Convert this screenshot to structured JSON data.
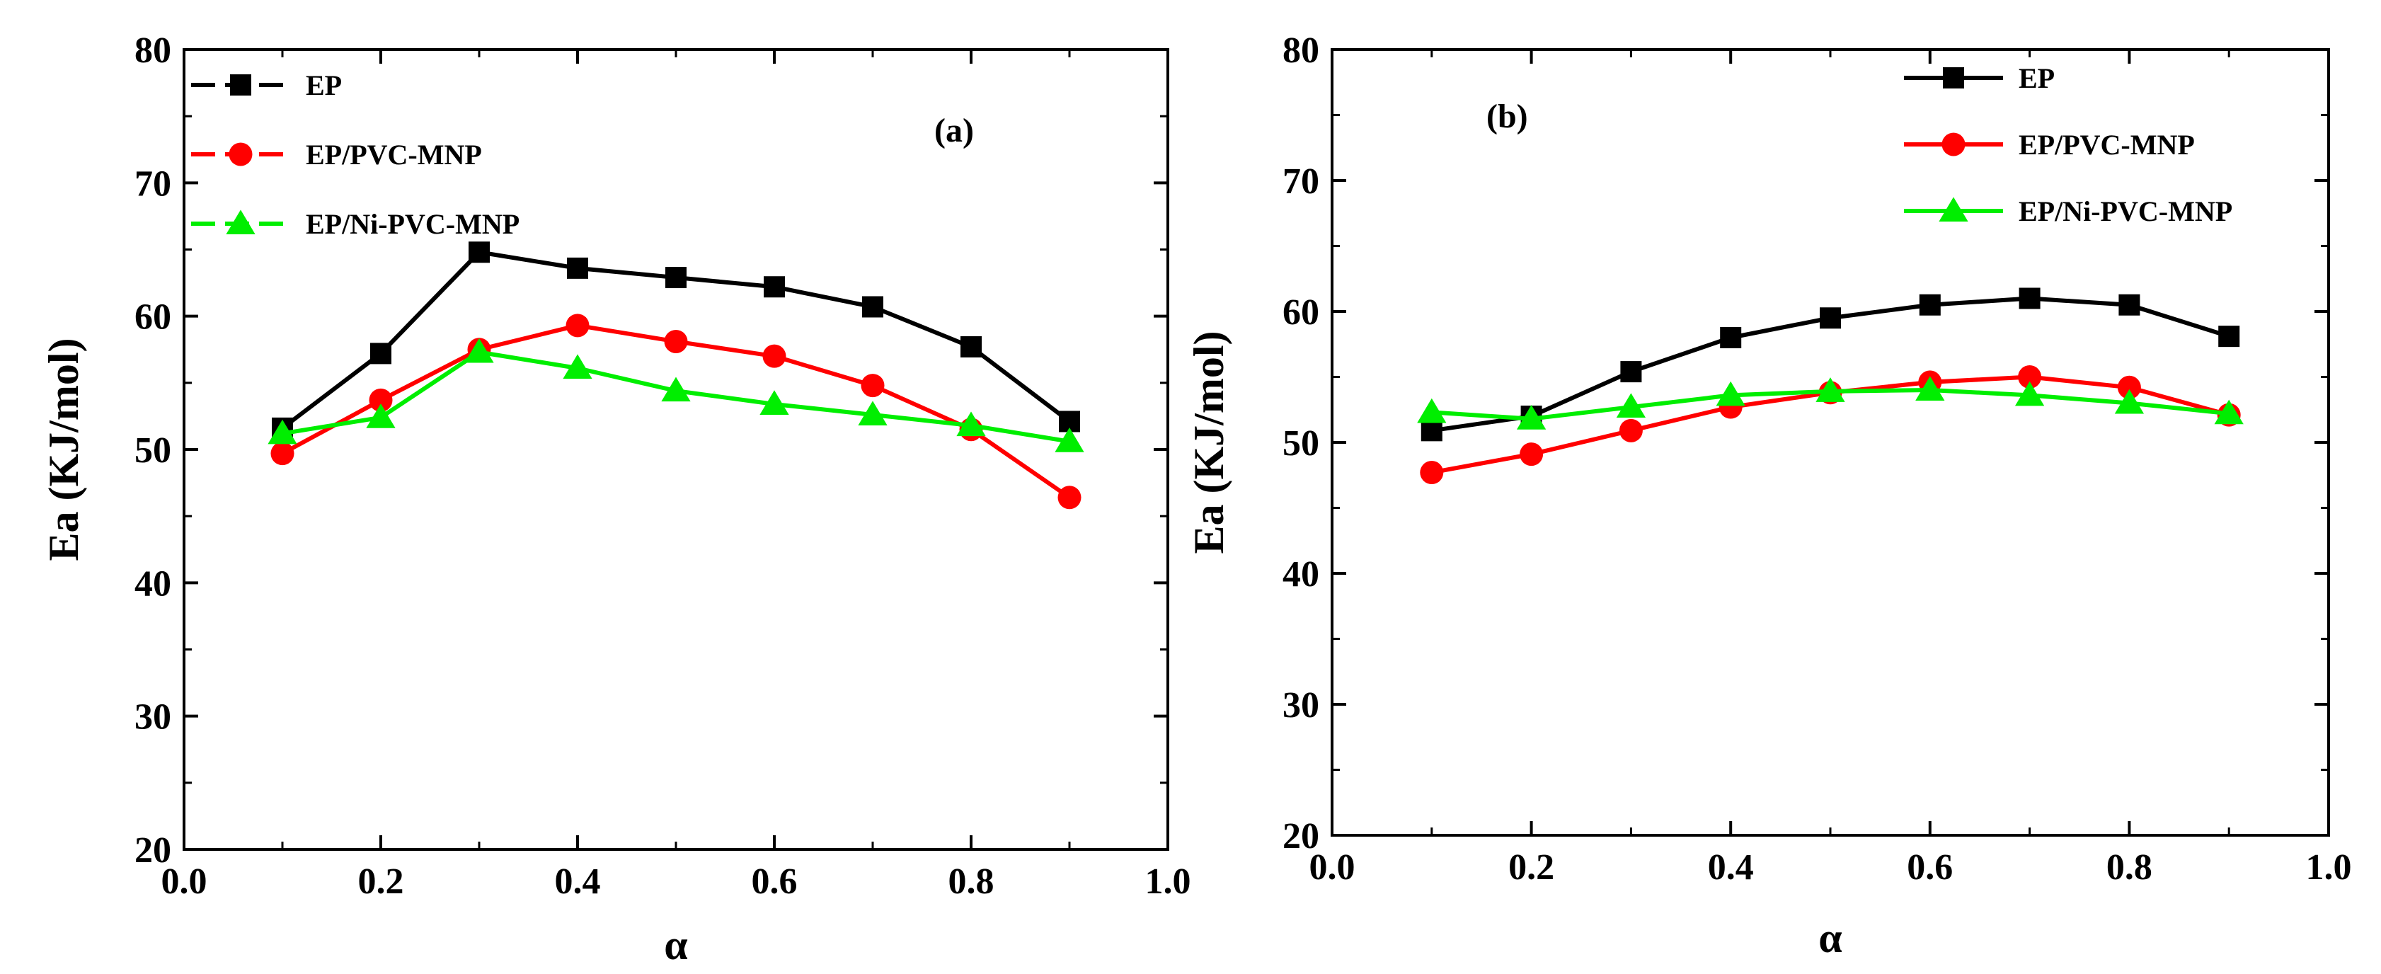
{
  "chart_data": [
    {
      "type": "line",
      "panel_label": "(a)",
      "xlabel": "α",
      "ylabel": "Ea (KJ/mol)",
      "xlim": [
        0.0,
        1.0
      ],
      "ylim": [
        20,
        80
      ],
      "x_ticks": [
        0.0,
        0.2,
        0.4,
        0.6,
        0.8,
        1.0
      ],
      "x_tick_labels": [
        "0.0",
        "0.2",
        "0.4",
        "0.6",
        "0.8",
        "1.0"
      ],
      "y_ticks": [
        20,
        30,
        40,
        50,
        60,
        70,
        80
      ],
      "y_tick_labels": [
        "20",
        "30",
        "40",
        "50",
        "60",
        "70",
        "80"
      ],
      "legend_position": "top-left",
      "x": [
        0.1,
        0.2,
        0.3,
        0.4,
        0.5,
        0.6,
        0.7,
        0.8,
        0.9
      ],
      "series": [
        {
          "name": "EP",
          "color": "#000000",
          "marker": "square",
          "values": [
            51.6,
            57.2,
            64.8,
            63.6,
            62.9,
            62.2,
            60.7,
            57.7,
            52.1
          ]
        },
        {
          "name": "EP/PVC-MNP",
          "color": "#ff0000",
          "marker": "circle",
          "values": [
            49.7,
            53.7,
            57.5,
            59.3,
            58.1,
            57.0,
            54.8,
            51.5,
            46.4
          ]
        },
        {
          "name": "EP/Ni-PVC-MNP",
          "color": "#00ee00",
          "marker": "triangle",
          "values": [
            51.2,
            52.4,
            57.3,
            56.1,
            54.4,
            53.4,
            52.6,
            51.8,
            50.6
          ]
        }
      ]
    },
    {
      "type": "line",
      "panel_label": "(b)",
      "xlabel": "α",
      "ylabel": "Ea (KJ/mol)",
      "xlim": [
        0.0,
        1.0
      ],
      "ylim": [
        20,
        80
      ],
      "x_ticks": [
        0.0,
        0.2,
        0.4,
        0.6,
        0.8,
        1.0
      ],
      "x_tick_labels": [
        "0.0",
        "0.2",
        "0.4",
        "0.6",
        "0.8",
        "1.0"
      ],
      "y_ticks": [
        20,
        30,
        40,
        50,
        60,
        70,
        80
      ],
      "y_tick_labels": [
        "20",
        "30",
        "40",
        "50",
        "60",
        "70",
        "80"
      ],
      "legend_position": "top-right",
      "x": [
        0.1,
        0.2,
        0.3,
        0.4,
        0.5,
        0.6,
        0.7,
        0.8,
        0.9
      ],
      "series": [
        {
          "name": "EP",
          "color": "#000000",
          "marker": "square",
          "values": [
            50.9,
            52.0,
            55.4,
            58.0,
            59.5,
            60.5,
            61.0,
            60.5,
            58.1
          ]
        },
        {
          "name": "EP/PVC-MNP",
          "color": "#ff0000",
          "marker": "circle",
          "values": [
            47.7,
            49.1,
            50.9,
            52.7,
            53.8,
            54.6,
            55.0,
            54.2,
            52.1
          ]
        },
        {
          "name": "EP/Ni-PVC-MNP",
          "color": "#00ee00",
          "marker": "triangle",
          "values": [
            52.3,
            51.8,
            52.7,
            53.6,
            53.9,
            54.0,
            53.6,
            53.0,
            52.2
          ]
        }
      ]
    }
  ]
}
